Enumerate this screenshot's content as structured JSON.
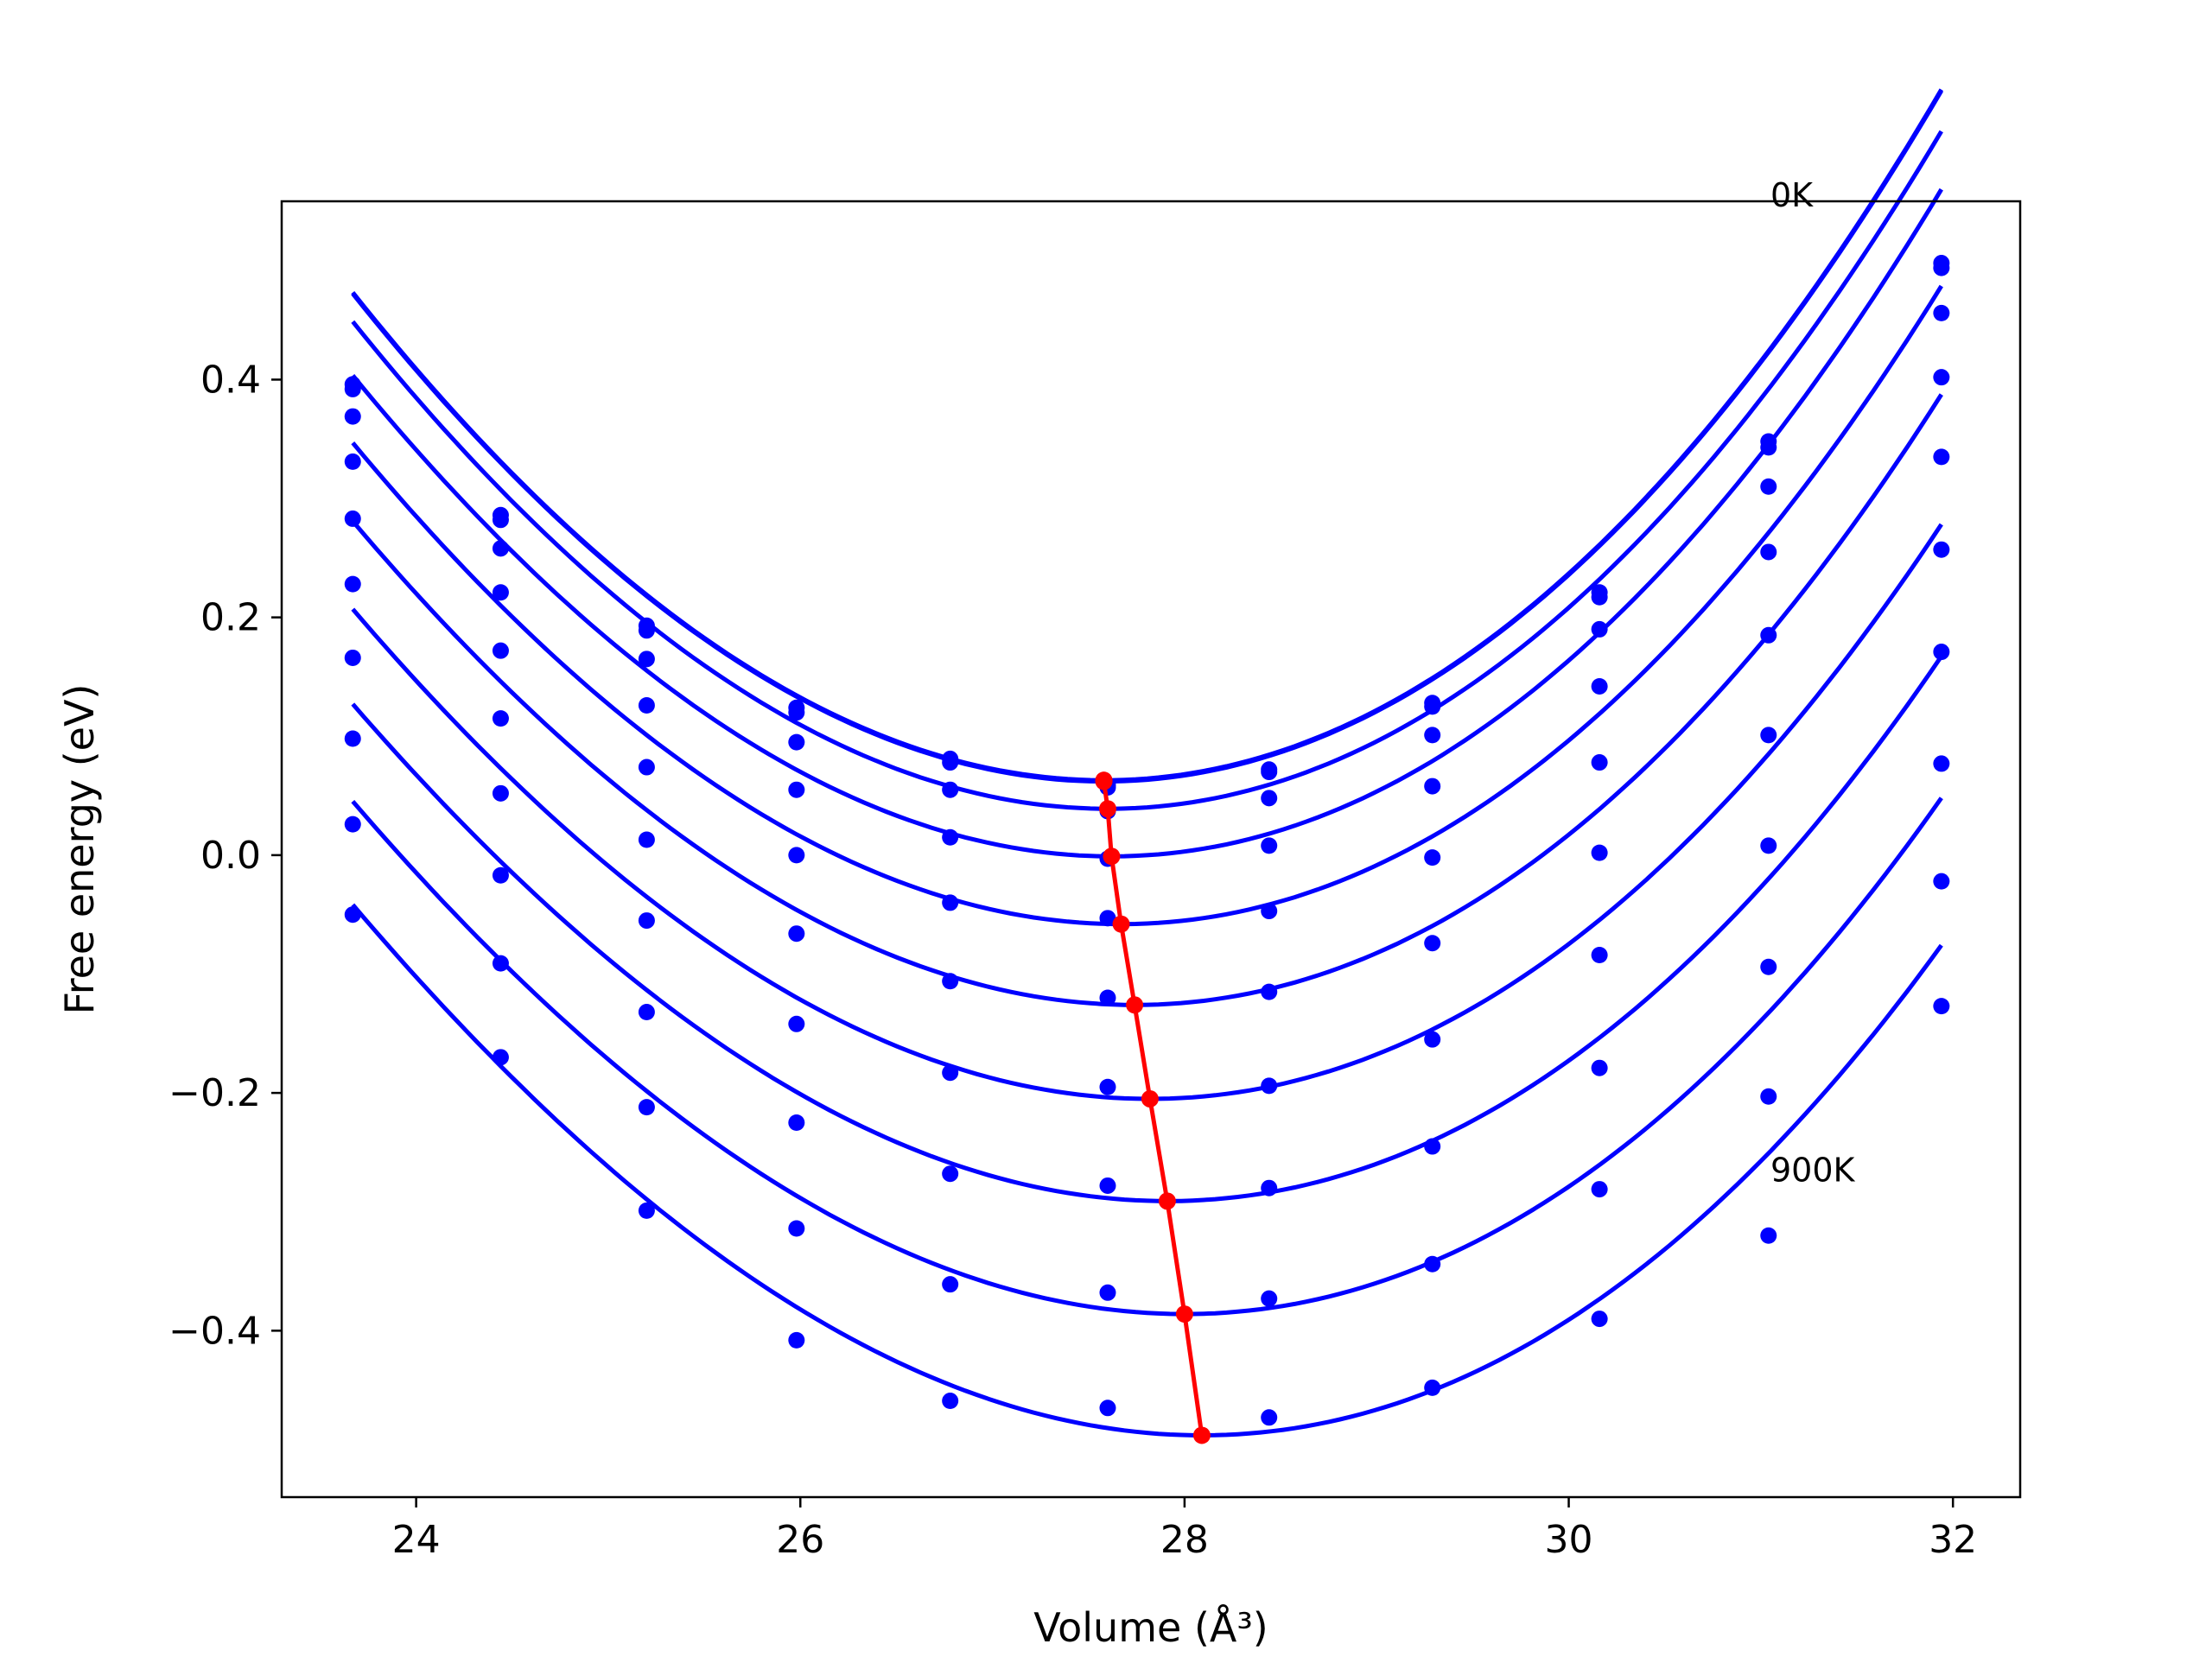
{
  "chart_data": {
    "type": "line",
    "xlabel": "Volume (Å³)",
    "ylabel": "Free energy (eV)",
    "xlim": [
      23.3,
      32.35
    ],
    "ylim": [
      -0.54,
      0.55
    ],
    "x_ticks": [
      24,
      26,
      28,
      30,
      32
    ],
    "y_ticks": [
      0.4,
      0.2,
      0.0,
      -0.2,
      -0.4
    ],
    "x_tick_labels": [
      "24",
      "26",
      "28",
      "30",
      "32"
    ],
    "y_tick_labels": [
      "0.4",
      "0.2",
      "0.0",
      "−0.2",
      "−0.4"
    ],
    "grid": false,
    "legend": "none",
    "annotations": [
      {
        "text": "0K",
        "x": 31.05,
        "y": 0.555
      },
      {
        "text": "900K",
        "x": 31.05,
        "y": -0.265
      }
    ],
    "sample_volumes": [
      23.67,
      24.44,
      25.2,
      25.98,
      26.78,
      27.6,
      28.44,
      29.29,
      30.16,
      31.04,
      31.94
    ],
    "series": [
      {
        "x": [
          23.67,
          24.44,
          25.2,
          25.98,
          26.78,
          27.6,
          28.44,
          29.29,
          30.16,
          31.04,
          31.94
        ],
        "y": [
          0.396,
          0.286,
          0.193,
          0.124,
          0.081,
          0.059,
          0.072,
          0.128,
          0.221,
          0.348,
          0.498
        ],
        "fit": {
          "v0": 27.58,
          "f0": 0.063,
          "a": 0.0286,
          "b": 0.00045
        }
      },
      {
        "x": [
          23.67,
          24.44,
          25.2,
          25.98,
          26.78,
          27.6,
          28.44,
          29.29,
          30.16,
          31.04,
          31.94
        ],
        "y": [
          0.392,
          0.282,
          0.189,
          0.12,
          0.078,
          0.057,
          0.07,
          0.125,
          0.217,
          0.343,
          0.494
        ],
        "fit": {
          "v0": 27.58,
          "f0": 0.062,
          "a": 0.0286,
          "b": 0.00045
        }
      },
      {
        "x": [
          23.67,
          24.44,
          25.2,
          25.98,
          26.78,
          27.6,
          28.44,
          29.29,
          30.16,
          31.04,
          31.94
        ],
        "y": [
          0.369,
          0.258,
          0.165,
          0.095,
          0.055,
          0.037,
          0.048,
          0.101,
          0.19,
          0.31,
          0.456
        ],
        "fit": {
          "v0": 27.6,
          "f0": 0.039,
          "a": 0.0283,
          "b": 0.00045
        }
      },
      {
        "x": [
          23.67,
          24.44,
          25.2,
          25.98,
          26.78,
          27.6,
          28.44,
          29.29,
          30.16,
          31.04,
          31.94
        ],
        "y": [
          0.331,
          0.221,
          0.126,
          0.055,
          0.015,
          -0.003,
          0.008,
          0.058,
          0.142,
          0.255,
          0.402
        ],
        "fit": {
          "v0": 27.62,
          "f0": -0.001,
          "a": 0.0279,
          "b": 0.0005
        }
      },
      {
        "x": [
          23.67,
          24.44,
          25.2,
          25.98,
          26.78,
          27.6,
          28.44,
          29.29,
          30.16,
          31.04,
          31.94
        ],
        "y": [
          0.283,
          0.172,
          0.074,
          0.0,
          -0.04,
          -0.053,
          -0.047,
          -0.002,
          0.078,
          0.185,
          0.335
        ],
        "fit": {
          "v0": 27.67,
          "f0": -0.058,
          "a": 0.0273,
          "b": 0.0005
        }
      },
      {
        "x": [
          23.67,
          24.44,
          25.2,
          25.98,
          26.78,
          27.6,
          28.44,
          29.29,
          30.16,
          31.04,
          31.94
        ],
        "y": [
          0.228,
          0.115,
          0.013,
          -0.066,
          -0.106,
          -0.12,
          -0.115,
          -0.074,
          0.002,
          0.101,
          0.257
        ],
        "fit": {
          "v0": 27.74,
          "f0": -0.126,
          "a": 0.0268,
          "b": 0.00055
        }
      },
      {
        "x": [
          23.67,
          24.44,
          25.2,
          25.98,
          26.78,
          27.6,
          28.44,
          29.29,
          30.16,
          31.04,
          31.94
        ],
        "y": [
          0.166,
          0.052,
          -0.055,
          -0.142,
          -0.183,
          -0.195,
          -0.194,
          -0.155,
          -0.084,
          0.008,
          0.171
        ],
        "fit": {
          "v0": 27.82,
          "f0": -0.205,
          "a": 0.0262,
          "b": 0.00055
        }
      },
      {
        "x": [
          23.67,
          24.44,
          25.2,
          25.98,
          26.78,
          27.6,
          28.44,
          29.29,
          30.16,
          31.04,
          31.94
        ],
        "y": [
          0.098,
          -0.017,
          -0.132,
          -0.225,
          -0.268,
          -0.278,
          -0.28,
          -0.245,
          -0.179,
          -0.094,
          0.077
        ],
        "fit": {
          "v0": 27.91,
          "f0": -0.291,
          "a": 0.0258,
          "b": 0.0006
        }
      },
      {
        "x": [
          23.67,
          24.44,
          25.2,
          25.98,
          26.78,
          27.6,
          28.44,
          29.29,
          30.16,
          31.04,
          31.94
        ],
        "y": [
          0.026,
          -0.091,
          -0.212,
          -0.314,
          -0.361,
          -0.368,
          -0.373,
          -0.344,
          -0.281,
          -0.203,
          -0.022
        ],
        "fit": {
          "v0": 28.0,
          "f0": -0.386,
          "a": 0.0256,
          "b": 0.0006
        }
      },
      {
        "x": [
          23.67,
          24.44,
          25.2,
          25.98,
          26.78,
          27.6,
          28.44,
          29.29,
          30.16,
          31.04,
          31.94
        ],
        "y": [
          -0.05,
          -0.17,
          -0.299,
          -0.408,
          -0.459,
          -0.465,
          -0.473,
          -0.448,
          -0.39,
          -0.32,
          -0.127
        ],
        "fit": {
          "v0": 28.09,
          "f0": -0.488,
          "a": 0.0255,
          "b": 0.0006
        }
      }
    ],
    "minimum_path": {
      "x": [
        27.58,
        27.58,
        27.6,
        27.62,
        27.67,
        27.74,
        27.82,
        27.91,
        28.0,
        28.09
      ],
      "y": [
        0.063,
        0.062,
        0.039,
        -0.001,
        -0.058,
        -0.126,
        -0.205,
        -0.291,
        -0.386,
        -0.488
      ]
    },
    "colors": {
      "fit_line": "#0000ff",
      "data_point": "#0000ff",
      "minimum_path": "#ff0000",
      "axes": "#000000"
    }
  }
}
